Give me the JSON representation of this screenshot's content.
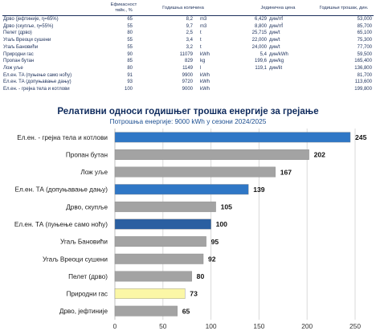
{
  "table": {
    "headers": [
      "Ефикасност твйк., %",
      "Годишња количина",
      "Јединична цена",
      "Годишњи трошак, дин."
    ],
    "rows": [
      {
        "name": "Дрво (јефтиније, η=65%)",
        "eff": "65",
        "qty": "8,2",
        "unit": "m3",
        "price": "6,429",
        "punit": "дин/m",
        "total": "53,000"
      },
      {
        "name": "Дрво (скупље, η=55%)",
        "eff": "55",
        "qty": "9,7",
        "unit": "m3",
        "price": "8,800",
        "punit": "дин/m",
        "total": "85,700"
      },
      {
        "name": "Пелет (дрво)",
        "eff": "80",
        "qty": "2,5",
        "unit": "t",
        "price": "25,715",
        "punit": "дин/t",
        "total": "65,100"
      },
      {
        "name": "Угаљ Вреоци сушени",
        "eff": "55",
        "qty": "3,4",
        "unit": "t",
        "price": "22,000",
        "punit": "дин/t",
        "total": "75,300"
      },
      {
        "name": "Угаљ Бановићи",
        "eff": "55",
        "qty": "3,2",
        "unit": "t",
        "price": "24,000",
        "punit": "дин/t",
        "total": "77,700"
      },
      {
        "name": "Природни гас",
        "eff": "90",
        "qty": "11079",
        "unit": "kWh",
        "price": "5,4",
        "punit": "дин/kWh",
        "total": "59,500"
      },
      {
        "name": "Пропан бутан",
        "eff": "85",
        "qty": "829",
        "unit": "kg",
        "price": "199,6",
        "punit": "дин/kg",
        "total": "165,400"
      },
      {
        "name": "Лож уље",
        "eff": "80",
        "qty": "1149",
        "unit": "l",
        "price": "119,1",
        "punit": "дин/lit",
        "total": "136,800"
      },
      {
        "name": "Ел.ен. ТА (пуњење само ноћу)",
        "eff": "91",
        "qty": "9900",
        "unit": "kWh",
        "price": "",
        "punit": "",
        "total": "81,700"
      },
      {
        "name": "Ел.ен. ТА (допуњавање дању)",
        "eff": "93",
        "qty": "9720",
        "unit": "kWh",
        "price": "",
        "punit": "",
        "total": "113,600"
      },
      {
        "name": "Ел.ен. - грејна тела и котлови",
        "eff": "100",
        "qty": "9000",
        "unit": "kWh",
        "price": "",
        "punit": "",
        "total": "199,800"
      }
    ]
  },
  "chart_data": {
    "type": "bar",
    "orientation": "horizontal",
    "title": "Релативни односи годишњег трошка енергије за грејање",
    "subtitle": "Потрошња енергије: 9000 kWh у сезони 2024/2025",
    "categories": [
      "Ел.ен. - грејна тела и котлови",
      "Пропан бутан",
      "Лож уље",
      "Ел.ен. ТА (допуњавање дању)",
      "Дрво, скупље",
      "Ел.ен. ТА (пуњење само ноћу)",
      "Угаљ Бановићи",
      "Угаљ Вреоци сушени",
      "Пелет (дрво)",
      "Природни гас",
      "Дрво, јефтиније"
    ],
    "values": [
      245,
      202,
      167,
      139,
      105,
      100,
      95,
      92,
      80,
      73,
      65
    ],
    "bar_colors": [
      "#2f77c6",
      "#a3a3a3",
      "#a3a3a3",
      "#2f77c6",
      "#a3a3a3",
      "#2b5fa1",
      "#a3a3a3",
      "#a3a3a3",
      "#a3a3a3",
      "#fbf7a6",
      "#a3a3a3"
    ],
    "xlim": [
      0,
      250
    ],
    "xticks": [
      0,
      50,
      100,
      150,
      200,
      250
    ],
    "grid": true
  }
}
